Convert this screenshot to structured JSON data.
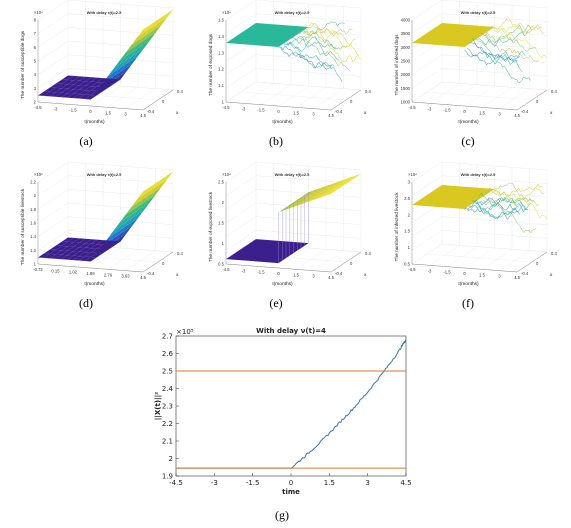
{
  "panels": [
    {
      "id": "a",
      "caption": "(a)",
      "title": "With delay τ(t)=2.5",
      "ylabel": "The number of susceptible dogs",
      "xlabel": "t(months)",
      "zlabel": "x",
      "exp": "×10⁴",
      "ticks_y": [
        "8",
        "7",
        "6",
        "5",
        "4",
        "3",
        "2"
      ],
      "ticks_x": [
        "-4.5",
        "-3",
        "-1.5",
        "0",
        "1.5",
        "3",
        "4.5"
      ],
      "ticks_z": [
        "0.4",
        "0",
        "-0.4"
      ],
      "kind": "susceptible"
    },
    {
      "id": "b",
      "caption": "(b)",
      "title": "With delay τ(t)=2.5",
      "ylabel": "The number of exposed dogs",
      "xlabel": "t(months)",
      "zlabel": "x",
      "exp": "×10⁴",
      "ticks_y": [
        "1.5",
        "1.4",
        "1.3",
        "1.2",
        "1.1",
        "1"
      ],
      "ticks_x": [
        "-4.5",
        "-3",
        "-1.5",
        "0",
        "1.5",
        "3",
        "4.5"
      ],
      "ticks_z": [
        "0.4",
        "0",
        "-0.4"
      ],
      "kind": "noise"
    },
    {
      "id": "c",
      "caption": "(c)",
      "title": "With delay τ(t)=2.5",
      "ylabel": "The number of infected dogs",
      "xlabel": "t(months)",
      "zlabel": "x",
      "exp": "",
      "ticks_y": [
        "4000",
        "3500",
        "3000",
        "2500",
        "2000",
        "1500",
        "1000"
      ],
      "ticks_x": [
        "-4.5",
        "-3",
        "-1.5",
        "0",
        "1.5",
        "3",
        "4.5"
      ],
      "ticks_z": [
        "0.4",
        "0",
        "-0.4"
      ],
      "kind": "noise"
    },
    {
      "id": "d",
      "caption": "(d)",
      "title": "With delay τ(t)=2.5",
      "ylabel": "The number of susceptible livestock",
      "xlabel": "t(months)",
      "zlabel": "x",
      "exp": "×10⁵",
      "ticks_y": [
        "2.2",
        "2",
        "1.8",
        "1.6",
        "1.4",
        "1.2",
        "1"
      ],
      "ticks_x": [
        "-0.72",
        "0.15",
        "1.02",
        "1.89",
        "2.76",
        "3.63",
        "4.5"
      ],
      "ticks_z": [
        "0.4",
        "0",
        "-0.4"
      ],
      "kind": "susceptible"
    },
    {
      "id": "e",
      "caption": "(e)",
      "title": "With delay τ(t)=2.5",
      "ylabel": "The number of exposed livestock",
      "xlabel": "t(months)",
      "zlabel": "x",
      "exp": "×10⁴",
      "ticks_y": [
        "2.5",
        "2",
        "1.5",
        "1",
        "0.5"
      ],
      "ticks_x": [
        "-4.5",
        "-3",
        "-1.5",
        "0",
        "1.5",
        "3",
        "4.5"
      ],
      "ticks_z": [
        "0.4",
        "0",
        "-0.4"
      ],
      "kind": "jump"
    },
    {
      "id": "f",
      "caption": "(f)",
      "title": "With delay τ(t)=2.5",
      "ylabel": "The number of infected livestock",
      "xlabel": "t(months)",
      "zlabel": "x",
      "exp": "×10⁴",
      "ticks_y": [
        "3",
        "2.5",
        "2",
        "1.5",
        "1",
        "0.5"
      ],
      "ticks_x": [
        "-4.5",
        "-3",
        "-1.5",
        "0",
        "1.5",
        "3",
        "4.5"
      ],
      "ticks_z": [
        "0.4",
        "0",
        "-0.4"
      ],
      "kind": "noise"
    }
  ],
  "chart_g": {
    "caption": "(g)",
    "title": "With delay ν(t)=4",
    "exp": "×10⁵",
    "xlabel": "time",
    "ylabel": "||X(t)||²",
    "xticks": [
      "-4.5",
      "-3",
      "-1.5",
      "0",
      "1.5",
      "3",
      "4.5"
    ],
    "yticks": [
      "1.9",
      "2",
      "2.1",
      "2.2",
      "2.3",
      "2.4",
      "2.5",
      "2.6",
      "2.7"
    ]
  },
  "chart_data": {
    "type": "line",
    "title": "With delay ν(t)=4",
    "xlabel": "time",
    "ylabel": "||X(t)||²",
    "xlim": [
      -4.5,
      4.5
    ],
    "ylim": [
      1.9,
      2.7
    ],
    "y_multiplier": 100000,
    "series": [
      {
        "color": "#2e7ab8",
        "x": [
          -4.5,
          0,
          0.6,
          1.2,
          1.8,
          2.4,
          3.0,
          3.6,
          4.2,
          4.5
        ],
        "y": [
          1.945,
          1.945,
          2.02,
          2.1,
          2.19,
          2.28,
          2.38,
          2.49,
          2.61,
          2.68
        ]
      },
      {
        "color": "#d97a2b",
        "x": [
          -4.5,
          4.5
        ],
        "y": [
          2.5,
          2.5
        ]
      },
      {
        "color": "#d97a2b",
        "x": [
          -4.5,
          4.5
        ],
        "y": [
          1.945,
          1.945
        ]
      }
    ],
    "colors": {
      "blue": "#2e7ab8",
      "orange": "#d97a2b",
      "surface_low": "#3b1f8c",
      "surface_mid": "#20b09a",
      "surface_high": "#f4e22a"
    }
  }
}
